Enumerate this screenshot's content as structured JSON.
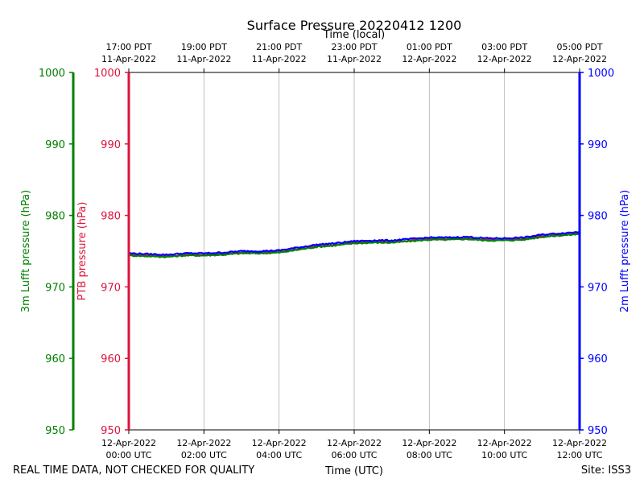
{
  "chart_data": {
    "type": "line",
    "title": "Surface Pressure 20220412 1200",
    "xlabel_bottom": "Time (UTC)",
    "xlabel_top": "Time (local)",
    "x_range": [
      "2022-04-12 00:00",
      "2022-04-12 12:00"
    ],
    "x_ticks_bottom": [
      {
        "x": "2022-04-12 00:00",
        "line1": "12-Apr-2022",
        "line2": "00:00 UTC"
      },
      {
        "x": "2022-04-12 02:00",
        "line1": "12-Apr-2022",
        "line2": "02:00 UTC"
      },
      {
        "x": "2022-04-12 04:00",
        "line1": "12-Apr-2022",
        "line2": "04:00 UTC"
      },
      {
        "x": "2022-04-12 06:00",
        "line1": "12-Apr-2022",
        "line2": "06:00 UTC"
      },
      {
        "x": "2022-04-12 08:00",
        "line1": "12-Apr-2022",
        "line2": "08:00 UTC"
      },
      {
        "x": "2022-04-12 10:00",
        "line1": "12-Apr-2022",
        "line2": "10:00 UTC"
      },
      {
        "x": "2022-04-12 12:00",
        "line1": "12-Apr-2022",
        "line2": "12:00 UTC"
      }
    ],
    "x_ticks_top": [
      {
        "x": "2022-04-12 00:00",
        "line1": "17:00 PDT",
        "line2": "11-Apr-2022"
      },
      {
        "x": "2022-04-12 02:00",
        "line1": "19:00 PDT",
        "line2": "11-Apr-2022"
      },
      {
        "x": "2022-04-12 04:00",
        "line1": "21:00 PDT",
        "line2": "11-Apr-2022"
      },
      {
        "x": "2022-04-12 06:00",
        "line1": "23:00 PDT",
        "line2": "11-Apr-2022"
      },
      {
        "x": "2022-04-12 08:00",
        "line1": "01:00 PDT",
        "line2": "12-Apr-2022"
      },
      {
        "x": "2022-04-12 10:00",
        "line1": "03:00 PDT",
        "line2": "12-Apr-2022"
      },
      {
        "x": "2022-04-12 12:00",
        "line1": "05:00 PDT",
        "line2": "12-Apr-2022"
      }
    ],
    "ylim": [
      950,
      1000
    ],
    "y_ticks": [
      950,
      960,
      970,
      980,
      990,
      1000
    ],
    "grid": "vertical",
    "axes": [
      {
        "key": "lufft3m",
        "label": "3m Lufft pressure (hPa)",
        "color": "#008000"
      },
      {
        "key": "ptb",
        "label": "PTB pressure (hPa)",
        "color": "#dc143c"
      },
      {
        "key": "lufft2m",
        "label": "2m Lufft pressure (hPa)",
        "color": "#0000ff"
      }
    ],
    "series": [
      {
        "axis": "ptb",
        "color": "#dc143c",
        "x": [
          "2022-04-12 00:00",
          "2022-04-12 00:30",
          "2022-04-12 01:00",
          "2022-04-12 01:30",
          "2022-04-12 02:00",
          "2022-04-12 02:30",
          "2022-04-12 03:00",
          "2022-04-12 03:30",
          "2022-04-12 04:00",
          "2022-04-12 04:30",
          "2022-04-12 05:00",
          "2022-04-12 05:30",
          "2022-04-12 06:00",
          "2022-04-12 06:30",
          "2022-04-12 07:00",
          "2022-04-12 07:30",
          "2022-04-12 08:00",
          "2022-04-12 08:30",
          "2022-04-12 09:00",
          "2022-04-12 09:30",
          "2022-04-12 10:00",
          "2022-04-12 10:30",
          "2022-04-12 11:00",
          "2022-04-12 11:30",
          "2022-04-12 12:00"
        ],
        "y": [
          974.5,
          974.4,
          974.3,
          974.5,
          974.5,
          974.6,
          974.8,
          974.8,
          974.9,
          975.3,
          975.7,
          975.9,
          976.2,
          976.3,
          976.3,
          976.5,
          976.7,
          976.7,
          976.8,
          976.6,
          976.6,
          976.7,
          977.1,
          977.3,
          977.5
        ]
      },
      {
        "axis": "lufft3m",
        "color": "#008000",
        "x": [
          "2022-04-12 00:00",
          "2022-04-12 00:30",
          "2022-04-12 01:00",
          "2022-04-12 01:30",
          "2022-04-12 02:00",
          "2022-04-12 02:30",
          "2022-04-12 03:00",
          "2022-04-12 03:30",
          "2022-04-12 04:00",
          "2022-04-12 04:30",
          "2022-04-12 05:00",
          "2022-04-12 05:30",
          "2022-04-12 06:00",
          "2022-04-12 06:30",
          "2022-04-12 07:00",
          "2022-04-12 07:30",
          "2022-04-12 08:00",
          "2022-04-12 08:30",
          "2022-04-12 09:00",
          "2022-04-12 09:30",
          "2022-04-12 10:00",
          "2022-04-12 10:30",
          "2022-04-12 11:00",
          "2022-04-12 11:30",
          "2022-04-12 12:00"
        ],
        "y": [
          974.4,
          974.3,
          974.2,
          974.4,
          974.4,
          974.5,
          974.7,
          974.7,
          974.8,
          975.2,
          975.6,
          975.8,
          976.1,
          976.2,
          976.2,
          976.4,
          976.6,
          976.6,
          976.7,
          976.5,
          976.5,
          976.6,
          977.0,
          977.2,
          977.4
        ]
      },
      {
        "axis": "lufft2m",
        "color": "#0000ff",
        "x": [
          "2022-04-12 00:00",
          "2022-04-12 00:30",
          "2022-04-12 01:00",
          "2022-04-12 01:30",
          "2022-04-12 02:00",
          "2022-04-12 02:30",
          "2022-04-12 03:00",
          "2022-04-12 03:30",
          "2022-04-12 04:00",
          "2022-04-12 04:30",
          "2022-04-12 05:00",
          "2022-04-12 05:30",
          "2022-04-12 06:00",
          "2022-04-12 06:30",
          "2022-04-12 07:00",
          "2022-04-12 07:30",
          "2022-04-12 08:00",
          "2022-04-12 08:30",
          "2022-04-12 09:00",
          "2022-04-12 09:30",
          "2022-04-12 10:00",
          "2022-04-12 10:30",
          "2022-04-12 11:00",
          "2022-04-12 11:30",
          "2022-04-12 12:00"
        ],
        "y": [
          974.7,
          974.6,
          974.5,
          974.7,
          974.7,
          974.8,
          975.0,
          975.0,
          975.1,
          975.5,
          975.9,
          976.1,
          976.4,
          976.5,
          976.5,
          976.7,
          976.9,
          976.9,
          977.0,
          976.8,
          976.8,
          976.9,
          977.3,
          977.5,
          977.7
        ]
      }
    ]
  },
  "footer": {
    "left": "REAL TIME DATA, NOT CHECKED FOR QUALITY",
    "right": "Site: ISS3"
  }
}
